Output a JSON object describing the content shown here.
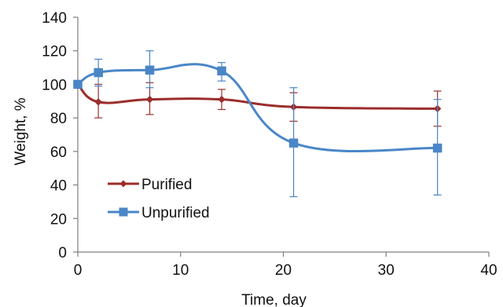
{
  "chart_data": {
    "type": "line",
    "title": "",
    "xlabel": "Time, day",
    "ylabel": "Weight, %",
    "xlim": [
      0,
      40
    ],
    "ylim": [
      0,
      140
    ],
    "xticks": [
      0,
      10,
      20,
      30,
      40
    ],
    "yticks": [
      0,
      20,
      40,
      60,
      80,
      100,
      120,
      140
    ],
    "grid": false,
    "smooth": true,
    "legend_position": "left-lower",
    "series": [
      {
        "name": "Purified",
        "color": "#9b2d2b",
        "marker": "diamond",
        "x": [
          0,
          2,
          7,
          14,
          21,
          35
        ],
        "y": [
          100,
          89.5,
          91,
          91,
          86.5,
          85.5
        ],
        "err_low": [
          100,
          80,
          82,
          85,
          78,
          75
        ],
        "err_high": [
          100,
          100,
          101,
          97,
          95,
          96
        ]
      },
      {
        "name": "Unpurified",
        "color": "#4a86c7",
        "marker": "square",
        "x": [
          0,
          2,
          7,
          14,
          21,
          35
        ],
        "y": [
          100,
          107,
          108.5,
          108,
          65,
          62
        ],
        "err_low": [
          100,
          99,
          98,
          102,
          33,
          34
        ],
        "err_high": [
          100,
          115,
          120,
          113,
          98,
          91
        ]
      }
    ]
  }
}
